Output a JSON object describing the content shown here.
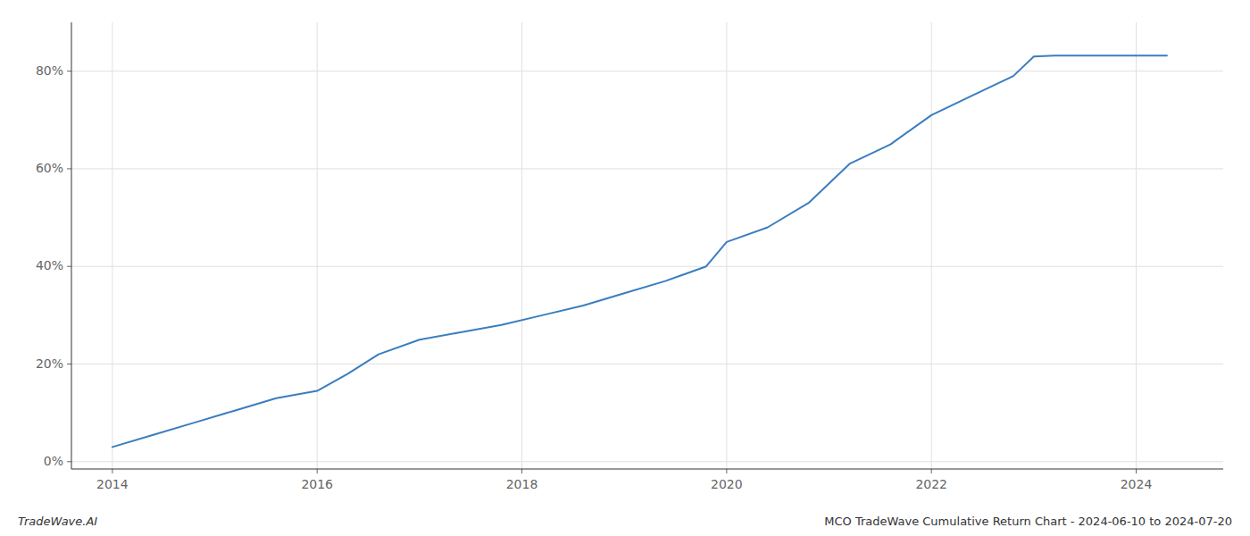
{
  "chart_data": {
    "type": "line",
    "x": [
      2014.0,
      2014.4,
      2014.8,
      2015.2,
      2015.6,
      2016.0,
      2016.3,
      2016.6,
      2017.0,
      2017.4,
      2017.8,
      2018.2,
      2018.6,
      2019.0,
      2019.4,
      2019.8,
      2020.0,
      2020.4,
      2020.8,
      2021.2,
      2021.6,
      2022.0,
      2022.4,
      2022.8,
      2023.0,
      2023.2,
      2023.5,
      2023.8,
      2024.0,
      2024.3
    ],
    "values": [
      3.0,
      5.5,
      8.0,
      10.5,
      13.0,
      14.5,
      18.0,
      22.0,
      25.0,
      26.5,
      28.0,
      30.0,
      32.0,
      34.5,
      37.0,
      40.0,
      45.0,
      48.0,
      53.0,
      61.0,
      65.0,
      71.0,
      75.0,
      79.0,
      83.0,
      83.2,
      83.2,
      83.2,
      83.2,
      83.2
    ],
    "color": "#3a7ebf",
    "xlim": [
      2013.6,
      2024.85
    ],
    "ylim": [
      -1.5,
      90
    ],
    "xticks": [
      2014,
      2016,
      2018,
      2020,
      2022,
      2024
    ],
    "yticks": [
      {
        "value": 0,
        "label": "0%"
      },
      {
        "value": 20,
        "label": "20%"
      },
      {
        "value": 40,
        "label": "40%"
      },
      {
        "value": 60,
        "label": "60%"
      },
      {
        "value": 80,
        "label": "80%"
      }
    ],
    "grid": true,
    "annotations": [
      "TradeWave.AI",
      "MCO TradeWave Cumulative Return Chart - 2024-06-10 to 2024-07-20"
    ]
  }
}
